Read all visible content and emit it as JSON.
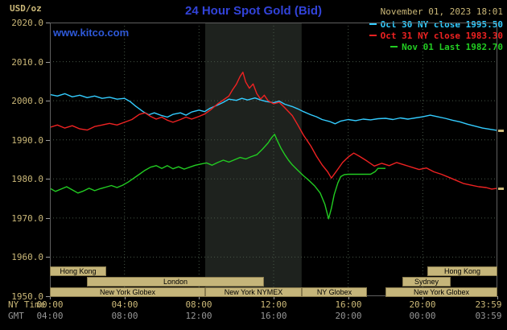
{
  "header": {
    "title": "24 Hour Spot Gold (Bid)",
    "units_label": "USD/oz",
    "watermark": "www.kitco.com",
    "datetime": "November 01, 2023 18:01"
  },
  "axes": {
    "y_ticks": [
      "2020.0",
      "2010.0",
      "2000.0",
      "1990.0",
      "1980.0",
      "1970.0",
      "1960.0",
      "1950.0"
    ],
    "x_hours": [
      0,
      4,
      8,
      12,
      16,
      20,
      23.983
    ],
    "ny_time_labels": [
      "00:00",
      "04:00",
      "08:00",
      "12:00",
      "16:00",
      "20:00",
      "23:59"
    ],
    "gmt_labels": [
      "04:00",
      "08:00",
      "12:00",
      "16:00",
      "20:00",
      "00:00",
      "03:59"
    ],
    "ny_time_caption": "NY Time",
    "gmt_caption": "GMT"
  },
  "sessions": [
    {
      "label": "Hong Kong",
      "row": 0,
      "start": 0,
      "end": 3
    },
    {
      "label": "Hong Kong",
      "row": 0,
      "start": 20.25,
      "end": 24
    },
    {
      "label": "London",
      "row": 1,
      "start": 2,
      "end": 11.5
    },
    {
      "label": "Sydney",
      "row": 1,
      "start": 18.9,
      "end": 21.5
    },
    {
      "label": "New York Globex",
      "row": 2,
      "start": 0,
      "end": 8.33
    },
    {
      "label": "New York NYMEX",
      "row": 2,
      "start": 8.33,
      "end": 13.5
    },
    {
      "label": "NY Globex",
      "row": 2,
      "start": 13.5,
      "end": 17
    },
    {
      "label": "New York Globex",
      "row": 2,
      "start": 18,
      "end": 24
    }
  ],
  "colors": {
    "background": "#000000",
    "title_blue": "#3243D9",
    "kitco_blue": "#2E59D9",
    "tan": "#CBB878",
    "gmt_gray": "#969696",
    "grid_green": "#475647",
    "band": "#1E221E",
    "session_fill": "#C5B57A",
    "session_text": "#000000"
  },
  "chart_data": {
    "type": "line",
    "title": "24 Hour Spot Gold (Bid)",
    "ylabel": "USD/oz",
    "ylim": [
      1950,
      2020
    ],
    "xlim_hours": [
      0,
      24
    ],
    "x_gridline_hours": [
      4,
      8,
      12,
      16,
      20
    ],
    "y_gridline_step": 10,
    "grid": "dotted",
    "legend_position": "top-right",
    "highlight_band_hours": [
      8.33,
      13.5
    ],
    "end_marker_values": [
      1992.4,
      1977.6
    ],
    "series": [
      {
        "name": "Oct 30 NY close 1995.50",
        "close_value": 1995.5,
        "color": "#33CCFF",
        "points": [
          [
            0,
            2001.6
          ],
          [
            0.4,
            2001.2
          ],
          [
            0.8,
            2001.8
          ],
          [
            1.2,
            2001.0
          ],
          [
            1.6,
            2001.4
          ],
          [
            2.0,
            2000.8
          ],
          [
            2.4,
            2001.2
          ],
          [
            2.8,
            2000.6
          ],
          [
            3.2,
            2000.9
          ],
          [
            3.6,
            2000.4
          ],
          [
            4.0,
            2000.6
          ],
          [
            4.3,
            1999.8
          ],
          [
            4.6,
            1998.6
          ],
          [
            5.0,
            1997.2
          ],
          [
            5.3,
            1996.4
          ],
          [
            5.6,
            1996.9
          ],
          [
            6.0,
            1996.2
          ],
          [
            6.3,
            1995.8
          ],
          [
            6.6,
            1996.5
          ],
          [
            7.0,
            1996.9
          ],
          [
            7.3,
            1996.3
          ],
          [
            7.6,
            1997.1
          ],
          [
            8.0,
            1997.6
          ],
          [
            8.3,
            1997.2
          ],
          [
            8.6,
            1998.1
          ],
          [
            9.0,
            1998.9
          ],
          [
            9.3,
            1999.6
          ],
          [
            9.6,
            2000.4
          ],
          [
            10.0,
            2000.1
          ],
          [
            10.3,
            2000.6
          ],
          [
            10.6,
            2000.2
          ],
          [
            11.0,
            2000.7
          ],
          [
            11.3,
            2000.2
          ],
          [
            11.6,
            1999.8
          ],
          [
            12.0,
            1999.5
          ],
          [
            12.3,
            1999.9
          ],
          [
            12.6,
            1999.1
          ],
          [
            13.0,
            1998.5
          ],
          [
            13.3,
            1997.9
          ],
          [
            13.6,
            1997.2
          ],
          [
            14.0,
            1996.4
          ],
          [
            14.3,
            1995.9
          ],
          [
            14.6,
            1995.2
          ],
          [
            15.0,
            1994.7
          ],
          [
            15.3,
            1994.1
          ],
          [
            15.6,
            1994.8
          ],
          [
            16.0,
            1995.2
          ],
          [
            16.4,
            1994.9
          ],
          [
            16.8,
            1995.3
          ],
          [
            17.2,
            1995.1
          ],
          [
            17.6,
            1995.4
          ],
          [
            18.0,
            1995.5
          ],
          [
            18.4,
            1995.2
          ],
          [
            18.8,
            1995.6
          ],
          [
            19.2,
            1995.3
          ],
          [
            19.6,
            1995.6
          ],
          [
            20.0,
            1995.9
          ],
          [
            20.4,
            1996.3
          ],
          [
            20.8,
            1995.9
          ],
          [
            21.2,
            1995.5
          ],
          [
            21.6,
            1995.0
          ],
          [
            22.0,
            1994.6
          ],
          [
            22.4,
            1994.0
          ],
          [
            22.8,
            1993.5
          ],
          [
            23.2,
            1993.0
          ],
          [
            23.6,
            1992.7
          ],
          [
            24.0,
            1992.4
          ]
        ]
      },
      {
        "name": "Oct 31 NY close 1983.30",
        "close_value": 1983.3,
        "color": "#EE2222",
        "points": [
          [
            0,
            1993.2
          ],
          [
            0.4,
            1993.8
          ],
          [
            0.8,
            1993.0
          ],
          [
            1.2,
            1993.6
          ],
          [
            1.6,
            1992.8
          ],
          [
            2.0,
            1992.5
          ],
          [
            2.4,
            1993.4
          ],
          [
            2.8,
            1993.8
          ],
          [
            3.2,
            1994.2
          ],
          [
            3.6,
            1993.8
          ],
          [
            4.0,
            1994.5
          ],
          [
            4.4,
            1995.2
          ],
          [
            4.8,
            1996.5
          ],
          [
            5.1,
            1996.9
          ],
          [
            5.4,
            1996.0
          ],
          [
            5.7,
            1995.3
          ],
          [
            6.0,
            1995.8
          ],
          [
            6.3,
            1995.0
          ],
          [
            6.6,
            1994.5
          ],
          [
            7.0,
            1995.2
          ],
          [
            7.3,
            1995.8
          ],
          [
            7.6,
            1995.3
          ],
          [
            8.0,
            1996.0
          ],
          [
            8.3,
            1996.6
          ],
          [
            8.6,
            1997.6
          ],
          [
            9.0,
            1999.2
          ],
          [
            9.3,
            2000.2
          ],
          [
            9.6,
            2001.2
          ],
          [
            9.8,
            2002.8
          ],
          [
            10.0,
            2004.2
          ],
          [
            10.2,
            2006.2
          ],
          [
            10.35,
            2007.3
          ],
          [
            10.5,
            2004.8
          ],
          [
            10.7,
            2003.2
          ],
          [
            10.9,
            2004.3
          ],
          [
            11.1,
            2001.8
          ],
          [
            11.3,
            2000.4
          ],
          [
            11.5,
            2001.4
          ],
          [
            11.7,
            2000.0
          ],
          [
            12.0,
            1999.2
          ],
          [
            12.3,
            1999.6
          ],
          [
            12.6,
            1998.2
          ],
          [
            13.0,
            1996.2
          ],
          [
            13.3,
            1993.8
          ],
          [
            13.6,
            1991.2
          ],
          [
            14.0,
            1988.4
          ],
          [
            14.3,
            1985.8
          ],
          [
            14.6,
            1983.6
          ],
          [
            14.9,
            1981.8
          ],
          [
            15.1,
            1980.2
          ],
          [
            15.4,
            1982.2
          ],
          [
            15.7,
            1984.2
          ],
          [
            16.0,
            1985.6
          ],
          [
            16.3,
            1986.6
          ],
          [
            16.6,
            1985.8
          ],
          [
            17.0,
            1984.6
          ],
          [
            17.4,
            1983.3
          ],
          [
            17.8,
            1984.0
          ],
          [
            18.2,
            1983.4
          ],
          [
            18.6,
            1984.2
          ],
          [
            19.0,
            1983.6
          ],
          [
            19.4,
            1983.0
          ],
          [
            19.8,
            1982.4
          ],
          [
            20.2,
            1982.8
          ],
          [
            20.6,
            1981.8
          ],
          [
            21.0,
            1981.2
          ],
          [
            21.4,
            1980.4
          ],
          [
            21.8,
            1979.6
          ],
          [
            22.2,
            1978.8
          ],
          [
            22.6,
            1978.4
          ],
          [
            23.0,
            1978.0
          ],
          [
            23.4,
            1977.8
          ],
          [
            23.7,
            1977.4
          ],
          [
            24.0,
            1977.6
          ]
        ]
      },
      {
        "name": "Nov 01 Last 1982.70",
        "close_value": 1982.7,
        "color": "#22CC22",
        "points": [
          [
            0,
            1977.6
          ],
          [
            0.3,
            1976.8
          ],
          [
            0.6,
            1977.4
          ],
          [
            0.9,
            1978.0
          ],
          [
            1.2,
            1977.2
          ],
          [
            1.5,
            1976.4
          ],
          [
            1.8,
            1976.9
          ],
          [
            2.1,
            1977.6
          ],
          [
            2.4,
            1977.0
          ],
          [
            2.7,
            1977.5
          ],
          [
            3.0,
            1977.9
          ],
          [
            3.3,
            1978.3
          ],
          [
            3.6,
            1977.8
          ],
          [
            3.9,
            1978.4
          ],
          [
            4.2,
            1979.2
          ],
          [
            4.5,
            1980.2
          ],
          [
            4.8,
            1981.2
          ],
          [
            5.1,
            1982.2
          ],
          [
            5.4,
            1983.0
          ],
          [
            5.7,
            1983.4
          ],
          [
            6.0,
            1982.7
          ],
          [
            6.3,
            1983.4
          ],
          [
            6.6,
            1982.6
          ],
          [
            6.9,
            1983.1
          ],
          [
            7.2,
            1982.5
          ],
          [
            7.5,
            1983.0
          ],
          [
            7.8,
            1983.5
          ],
          [
            8.1,
            1983.8
          ],
          [
            8.4,
            1984.1
          ],
          [
            8.7,
            1983.5
          ],
          [
            9.0,
            1984.2
          ],
          [
            9.3,
            1984.8
          ],
          [
            9.6,
            1984.3
          ],
          [
            9.9,
            1984.9
          ],
          [
            10.2,
            1985.5
          ],
          [
            10.5,
            1985.1
          ],
          [
            10.8,
            1985.7
          ],
          [
            11.1,
            1986.2
          ],
          [
            11.4,
            1987.6
          ],
          [
            11.7,
            1989.2
          ],
          [
            11.9,
            1990.6
          ],
          [
            12.05,
            1991.4
          ],
          [
            12.2,
            1989.8
          ],
          [
            12.4,
            1987.8
          ],
          [
            12.6,
            1986.2
          ],
          [
            12.8,
            1984.8
          ],
          [
            13.0,
            1983.6
          ],
          [
            13.3,
            1982.2
          ],
          [
            13.6,
            1980.8
          ],
          [
            13.9,
            1979.6
          ],
          [
            14.2,
            1978.2
          ],
          [
            14.5,
            1976.4
          ],
          [
            14.75,
            1973.5
          ],
          [
            14.95,
            1969.8
          ],
          [
            15.1,
            1972.5
          ],
          [
            15.25,
            1976.0
          ],
          [
            15.45,
            1979.0
          ],
          [
            15.6,
            1980.6
          ],
          [
            15.8,
            1981.1
          ],
          [
            16.0,
            1981.2
          ],
          [
            16.4,
            1981.2
          ],
          [
            16.8,
            1981.2
          ],
          [
            17.2,
            1981.2
          ],
          [
            17.45,
            1981.9
          ],
          [
            17.6,
            1982.7
          ],
          [
            18.0,
            1982.7
          ]
        ]
      }
    ]
  }
}
